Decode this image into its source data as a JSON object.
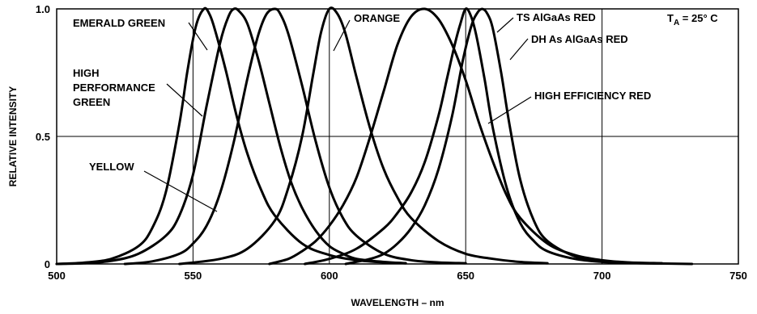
{
  "chart_data": {
    "type": "line",
    "title": "",
    "xlabel": "WAVELENGTH – nm",
    "ylabel": "RELATIVE INTENSITY",
    "xlim": [
      500,
      750
    ],
    "ylim": [
      0,
      1.0
    ],
    "x_ticks": [
      500,
      550,
      600,
      650,
      700,
      750
    ],
    "y_ticks": [
      {
        "value": 0,
        "label": "0"
      },
      {
        "value": 0.5,
        "label": "0.5"
      },
      {
        "value": 1.0,
        "label": "1.0"
      }
    ],
    "grid": true,
    "condition": {
      "main": "T",
      "sub": "A",
      "rest": " = 25° C"
    },
    "series": [
      {
        "name": "EMERALD GREEN",
        "x": [
          500,
          510,
          520,
          530,
          535,
          540,
          545,
          548,
          551,
          554,
          556,
          558,
          562,
          566,
          570,
          575,
          580,
          590,
          600,
          610,
          620,
          628
        ],
        "y": [
          0,
          0.005,
          0.02,
          0.07,
          0.14,
          0.28,
          0.55,
          0.76,
          0.93,
          1.0,
          0.98,
          0.92,
          0.76,
          0.58,
          0.43,
          0.29,
          0.19,
          0.08,
          0.035,
          0.015,
          0.006,
          0.003
        ]
      },
      {
        "name": "HIGH PERFORMANCE GREEN",
        "x": [
          500,
          510,
          520,
          530,
          540,
          545,
          550,
          555,
          560,
          563,
          565,
          567,
          570,
          574,
          578,
          582,
          586,
          590,
          595,
          600,
          605,
          610,
          620,
          628
        ],
        "y": [
          0,
          0.003,
          0.012,
          0.04,
          0.11,
          0.19,
          0.35,
          0.62,
          0.87,
          0.97,
          1.0,
          0.99,
          0.94,
          0.8,
          0.63,
          0.46,
          0.32,
          0.22,
          0.13,
          0.07,
          0.04,
          0.02,
          0.008,
          0.003
        ]
      },
      {
        "name": "YELLOW",
        "x": [
          525,
          535,
          545,
          550,
          555,
          560,
          565,
          570,
          574,
          577,
          580,
          582,
          585,
          590,
          595,
          600,
          605,
          610,
          620,
          630,
          640,
          650
        ],
        "y": [
          0,
          0.01,
          0.04,
          0.08,
          0.15,
          0.28,
          0.48,
          0.73,
          0.9,
          0.98,
          1.0,
          0.98,
          0.9,
          0.7,
          0.48,
          0.3,
          0.18,
          0.11,
          0.04,
          0.015,
          0.006,
          0.003
        ]
      },
      {
        "name": "ORANGE",
        "x": [
          545,
          560,
          570,
          580,
          585,
          590,
          594,
          597,
          600,
          603,
          606,
          610,
          615,
          620,
          625,
          630,
          640,
          650,
          660,
          670,
          680
        ],
        "y": [
          0,
          0.02,
          0.06,
          0.17,
          0.3,
          0.5,
          0.74,
          0.91,
          1.0,
          0.98,
          0.9,
          0.73,
          0.53,
          0.37,
          0.26,
          0.18,
          0.09,
          0.04,
          0.02,
          0.008,
          0.003
        ]
      },
      {
        "name": "HIGH EFFICIENCY RED",
        "x": [
          578,
          585,
          590,
          595,
          600,
          605,
          610,
          615,
          620,
          625,
          630,
          635,
          640,
          645,
          650,
          655,
          660,
          665,
          670,
          680,
          690,
          700,
          710,
          722
        ],
        "y": [
          0,
          0.02,
          0.05,
          0.09,
          0.15,
          0.23,
          0.34,
          0.5,
          0.68,
          0.86,
          0.97,
          1.0,
          0.96,
          0.86,
          0.72,
          0.55,
          0.4,
          0.27,
          0.18,
          0.08,
          0.035,
          0.015,
          0.006,
          0.003
        ]
      },
      {
        "name": "TS AlGaAs RED",
        "x": [
          591,
          600,
          610,
          620,
          625,
          630,
          635,
          640,
          643,
          646,
          648,
          650,
          652,
          654,
          657,
          660,
          665,
          670,
          675,
          680,
          690,
          700,
          710,
          722
        ],
        "y": [
          0,
          0.02,
          0.06,
          0.14,
          0.2,
          0.28,
          0.4,
          0.58,
          0.72,
          0.86,
          0.94,
          1.0,
          0.97,
          0.89,
          0.72,
          0.53,
          0.3,
          0.16,
          0.09,
          0.05,
          0.02,
          0.008,
          0.004,
          0.002
        ]
      },
      {
        "name": "DH As AlGaAs RED",
        "x": [
          606,
          615,
          620,
          625,
          630,
          635,
          640,
          645,
          649,
          652,
          654,
          656,
          658,
          660,
          663,
          666,
          670,
          675,
          680,
          690,
          700,
          710,
          720,
          733
        ],
        "y": [
          0,
          0.02,
          0.04,
          0.08,
          0.14,
          0.23,
          0.37,
          0.58,
          0.8,
          0.93,
          0.98,
          1.0,
          0.98,
          0.92,
          0.75,
          0.55,
          0.33,
          0.17,
          0.09,
          0.03,
          0.012,
          0.005,
          0.002,
          0
        ]
      }
    ],
    "annotations": [
      {
        "text": "EMERALD GREEN",
        "series": 0
      },
      {
        "lines": [
          "HIGH",
          "PERFORMANCE",
          "GREEN"
        ],
        "series": 1
      },
      {
        "text": "YELLOW",
        "series": 2
      },
      {
        "text": "ORANGE",
        "series": 3
      },
      {
        "text": "HIGH EFFICIENCY RED",
        "series": 4
      },
      {
        "text": "TS AlGaAs RED",
        "series": 5
      },
      {
        "text": "DH As AlGaAs RED",
        "series": 6
      }
    ]
  }
}
